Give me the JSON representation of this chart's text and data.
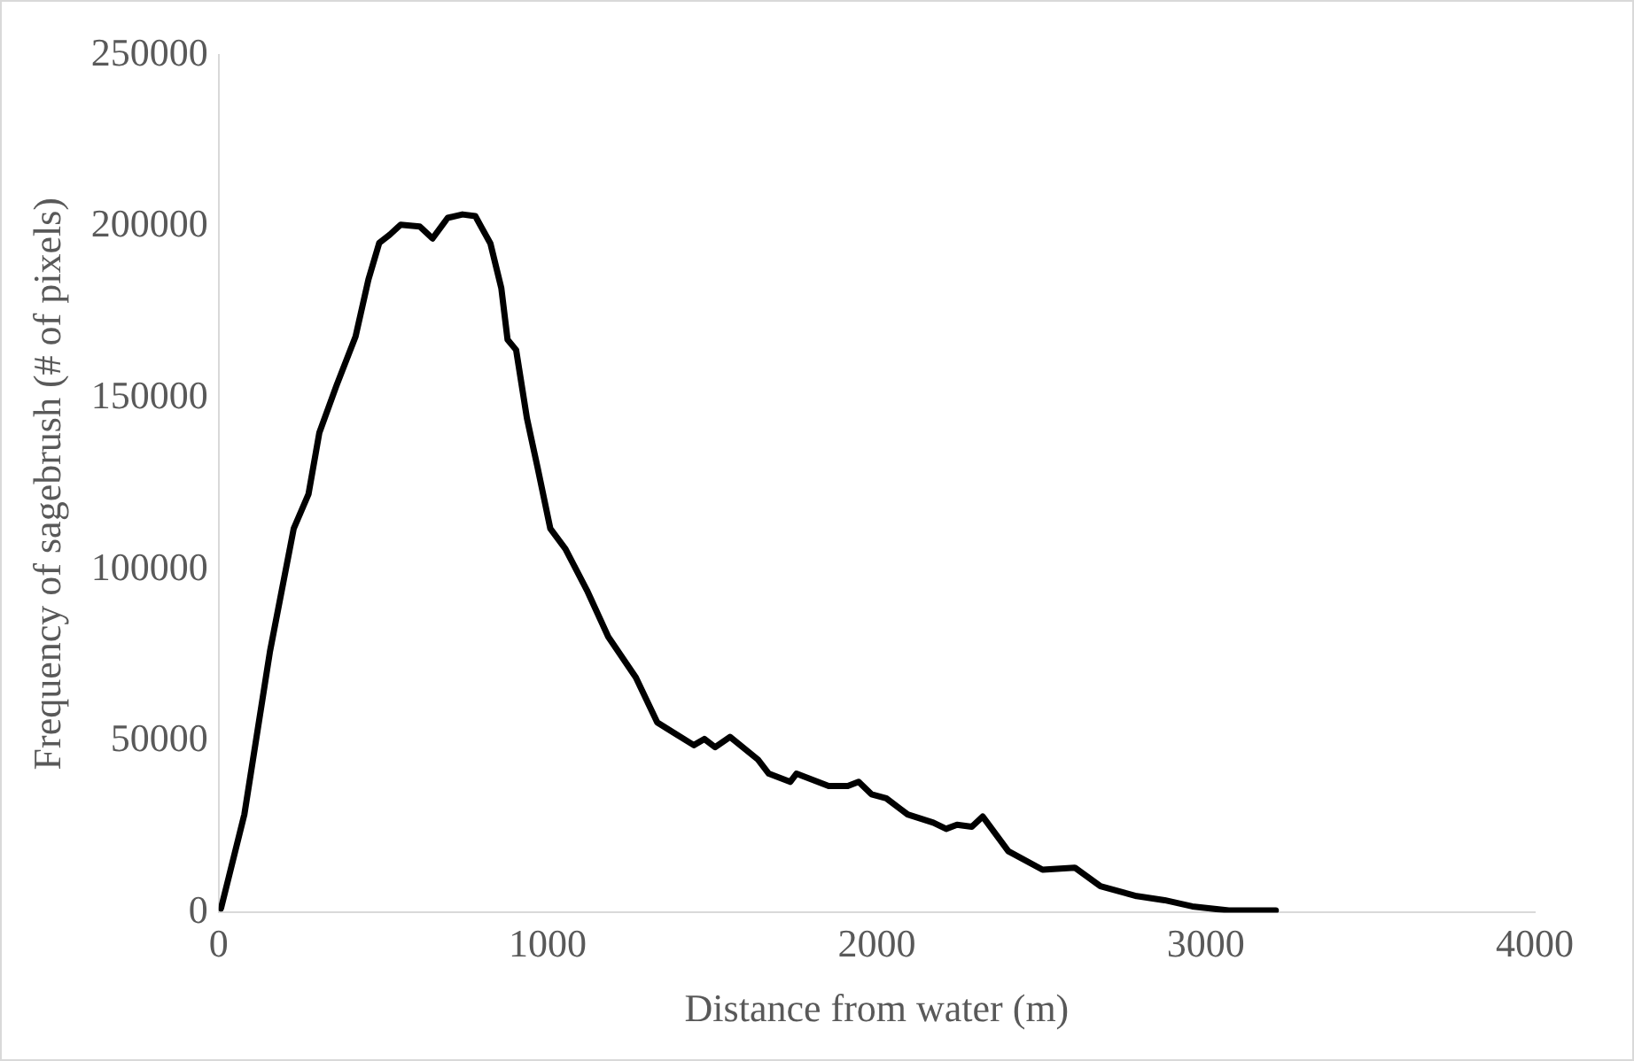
{
  "chart_data": {
    "type": "line",
    "xlabel": "Distance from water (m)",
    "ylabel": "Frequency of sagebrush (# of pixels)",
    "xlim": [
      0,
      4000
    ],
    "xticks": [
      0,
      1000,
      2000,
      3000,
      4000
    ],
    "ylim": [
      0,
      250000
    ],
    "yticks": [
      0,
      50000,
      100000,
      150000,
      200000,
      250000
    ],
    "grid": false,
    "legend": false,
    "marker": "none",
    "line_style": "solid",
    "series": [
      {
        "color": "#000000",
        "x": [
          7,
          78,
          156,
          228,
          273,
          306,
          358,
          416,
          455,
          488,
          520,
          553,
          611,
          650,
          696,
          741,
          780,
          826,
          859,
          878,
          904,
          937,
          969,
          1008,
          1054,
          1119,
          1184,
          1268,
          1333,
          1444,
          1476,
          1509,
          1554,
          1639,
          1672,
          1737,
          1756,
          1854,
          1912,
          1945,
          1984,
          2029,
          2094,
          2172,
          2211,
          2244,
          2289,
          2322,
          2400,
          2504,
          2602,
          2680,
          2790,
          2875,
          2959,
          3070,
          3213
        ],
        "values": [
          1200,
          28600,
          76200,
          111900,
          122000,
          139900,
          153600,
          167900,
          184500,
          195200,
          197600,
          200500,
          200000,
          196500,
          202500,
          203500,
          203000,
          195000,
          182000,
          167000,
          164000,
          144000,
          129800,
          111900,
          106000,
          94000,
          80400,
          68500,
          55400,
          48800,
          50600,
          48200,
          51200,
          44600,
          40500,
          38100,
          40500,
          36900,
          36900,
          38100,
          34500,
          33300,
          28600,
          26200,
          24400,
          25600,
          25000,
          28000,
          17900,
          12500,
          13100,
          7700,
          4800,
          3600,
          1800,
          600,
          600
        ]
      }
    ]
  }
}
